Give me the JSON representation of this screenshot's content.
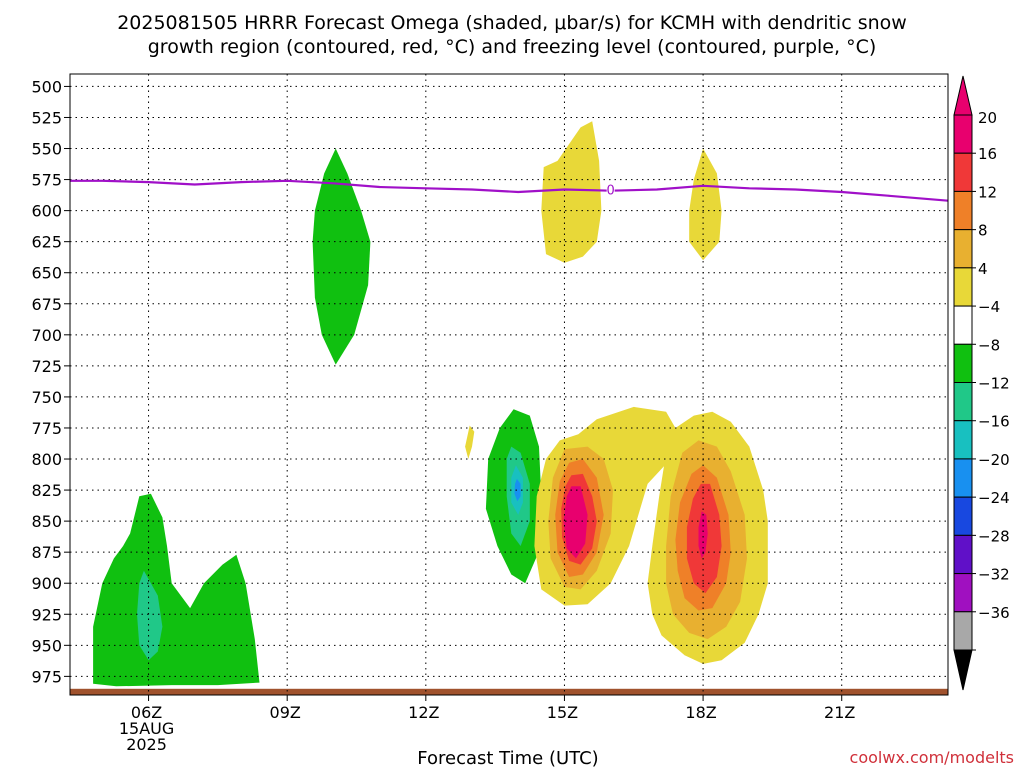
{
  "chart_data": {
    "type": "heatmap",
    "title_lines": [
      "2025081505 HRRR Forecast Omega (shaded, μbar/s) for KCMH with dendritic snow",
      "growth region (contoured, red, °C) and freezing level (contoured, purple, °C)"
    ],
    "xlabel": "Forecast Time (UTC)",
    "credit": "coolwx.com/modelts",
    "x_unit_note": "forecast hours since 2025081505",
    "xlim": [
      -0.7,
      18.3
    ],
    "ylim_mb": [
      490,
      990
    ],
    "y_ticks": [
      500,
      525,
      550,
      575,
      600,
      625,
      650,
      675,
      700,
      725,
      750,
      775,
      800,
      825,
      850,
      875,
      900,
      925,
      950,
      975
    ],
    "x_ticks": [
      {
        "x": 1,
        "lines": [
          "06Z",
          "15AUG",
          "2025"
        ]
      },
      {
        "x": 4,
        "lines": [
          "09Z"
        ]
      },
      {
        "x": 7,
        "lines": [
          "12Z"
        ]
      },
      {
        "x": 10,
        "lines": [
          "15Z"
        ]
      },
      {
        "x": 13,
        "lines": [
          "18Z"
        ]
      },
      {
        "x": 16,
        "lines": [
          "21Z"
        ]
      }
    ],
    "grid": true,
    "colorbar": {
      "labels": [
        "20",
        "16",
        "12",
        "8",
        "4",
        "−4",
        "−8",
        "−12",
        "−16",
        "−20",
        "−24",
        "−28",
        "−32",
        "−36"
      ],
      "colors": [
        "#e8006e",
        "#f03838",
        "#ef8028",
        "#e8b030",
        "#e8d838",
        "#ffffff",
        "#10c010",
        "#20c888",
        "#18c0c0",
        "#1890f0",
        "#1848e0",
        "#6010c8",
        "#a010c0",
        "#a8a8a8"
      ],
      "top_arrow_color": "#e8006e",
      "bottom_arrow_color": "#000000"
    },
    "freezing_level": {
      "label": "0",
      "color": "#a010c8",
      "x": [
        -0.7,
        0,
        1,
        2,
        3,
        4,
        5,
        6,
        7,
        8,
        9,
        10,
        11,
        12,
        13,
        14,
        15,
        16,
        17,
        18.3
      ],
      "p": [
        576,
        576,
        577,
        579,
        577,
        576,
        578,
        581,
        582,
        583,
        585,
        583,
        584,
        583,
        580,
        582,
        583,
        585,
        588,
        592
      ]
    },
    "ground": {
      "color": "#a0522d",
      "p_top": 985
    },
    "omega_regions": [
      {
        "value": -6,
        "color": "#10c010",
        "points": [
          [
            -0.2,
            981
          ],
          [
            0.3,
            983
          ],
          [
            1.5,
            982
          ],
          [
            2.5,
            982
          ],
          [
            3.4,
            980
          ],
          [
            3.3,
            945
          ],
          [
            3.1,
            900
          ],
          [
            2.9,
            877
          ],
          [
            2.6,
            885
          ],
          [
            2.2,
            900
          ],
          [
            1.9,
            920
          ],
          [
            1.5,
            900
          ],
          [
            1.4,
            870
          ],
          [
            1.3,
            847
          ],
          [
            1.05,
            828
          ],
          [
            0.8,
            830
          ],
          [
            0.6,
            860
          ],
          [
            0.45,
            870
          ],
          [
            0.25,
            880
          ],
          [
            0.0,
            900
          ],
          [
            -0.2,
            935
          ]
        ]
      },
      {
        "value": -10,
        "color": "#20c888",
        "points": [
          [
            0.9,
            890
          ],
          [
            1.2,
            910
          ],
          [
            1.3,
            935
          ],
          [
            1.2,
            955
          ],
          [
            1.0,
            962
          ],
          [
            0.8,
            950
          ],
          [
            0.75,
            925
          ],
          [
            0.8,
            900
          ]
        ]
      },
      {
        "value": -6,
        "color": "#10c010",
        "points": [
          [
            5.05,
            550
          ],
          [
            5.3,
            570
          ],
          [
            5.6,
            600
          ],
          [
            5.8,
            625
          ],
          [
            5.75,
            660
          ],
          [
            5.45,
            700
          ],
          [
            5.05,
            724
          ],
          [
            4.75,
            700
          ],
          [
            4.6,
            670
          ],
          [
            4.55,
            625
          ],
          [
            4.6,
            600
          ],
          [
            4.8,
            570
          ]
        ]
      },
      {
        "value": 6,
        "color": "#e8d838",
        "points": [
          [
            9.85,
            560
          ],
          [
            10.35,
            533
          ],
          [
            10.6,
            528
          ],
          [
            10.75,
            560
          ],
          [
            10.8,
            600
          ],
          [
            10.7,
            625
          ],
          [
            10.4,
            637
          ],
          [
            10.0,
            642
          ],
          [
            9.6,
            635
          ],
          [
            9.5,
            600
          ],
          [
            9.55,
            565
          ]
        ]
      },
      {
        "value": 6,
        "color": "#e8d838",
        "points": [
          [
            13.0,
            550
          ],
          [
            13.3,
            570
          ],
          [
            13.4,
            600
          ],
          [
            13.35,
            625
          ],
          [
            13.0,
            640
          ],
          [
            12.7,
            625
          ],
          [
            12.7,
            600
          ],
          [
            12.8,
            575
          ]
        ]
      },
      {
        "value": 6,
        "color": "#e8d838",
        "points": [
          [
            7.95,
            773
          ],
          [
            8.05,
            778
          ],
          [
            8.0,
            790
          ],
          [
            7.92,
            800
          ],
          [
            7.85,
            790
          ]
        ]
      },
      {
        "value": -6,
        "color": "#10c010",
        "points": [
          [
            8.9,
            760
          ],
          [
            9.25,
            765
          ],
          [
            9.45,
            790
          ],
          [
            9.5,
            830
          ],
          [
            9.5,
            870
          ],
          [
            9.15,
            900
          ],
          [
            8.85,
            893
          ],
          [
            8.55,
            870
          ],
          [
            8.3,
            840
          ],
          [
            8.35,
            800
          ],
          [
            8.6,
            775
          ]
        ]
      },
      {
        "value": -10,
        "color": "#20c888",
        "points": [
          [
            8.85,
            790
          ],
          [
            9.05,
            795
          ],
          [
            9.25,
            820
          ],
          [
            9.25,
            850
          ],
          [
            9.05,
            870
          ],
          [
            8.85,
            860
          ],
          [
            8.75,
            830
          ],
          [
            8.75,
            800
          ]
        ]
      },
      {
        "value": -14,
        "color": "#18c0c0",
        "points": [
          [
            8.95,
            805
          ],
          [
            9.1,
            815
          ],
          [
            9.1,
            835
          ],
          [
            9.0,
            845
          ],
          [
            8.85,
            835
          ],
          [
            8.85,
            815
          ]
        ]
      },
      {
        "value": -18,
        "color": "#1890f0",
        "points": [
          [
            8.97,
            816
          ],
          [
            9.05,
            820
          ],
          [
            9.05,
            830
          ],
          [
            8.98,
            834
          ],
          [
            8.92,
            828
          ],
          [
            8.93,
            820
          ]
        ]
      },
      {
        "value": 6,
        "color": "#e8d838",
        "points": [
          [
            10.3,
            780
          ],
          [
            10.7,
            768
          ],
          [
            11.5,
            758
          ],
          [
            12.2,
            762
          ],
          [
            12.4,
            775
          ],
          [
            12.3,
            800
          ],
          [
            11.8,
            820
          ],
          [
            11.4,
            870
          ],
          [
            11.0,
            900
          ],
          [
            10.5,
            917
          ],
          [
            10.0,
            918
          ],
          [
            9.5,
            905
          ],
          [
            9.35,
            870
          ],
          [
            9.4,
            830
          ],
          [
            9.6,
            800
          ],
          [
            9.9,
            785
          ]
        ]
      },
      {
        "value": 10,
        "color": "#e8b030",
        "points": [
          [
            10.0,
            792
          ],
          [
            10.5,
            790
          ],
          [
            10.85,
            800
          ],
          [
            11.05,
            825
          ],
          [
            11.0,
            860
          ],
          [
            10.7,
            890
          ],
          [
            10.35,
            905
          ],
          [
            10.0,
            903
          ],
          [
            9.7,
            880
          ],
          [
            9.65,
            850
          ],
          [
            9.75,
            815
          ]
        ]
      },
      {
        "value": 14,
        "color": "#ef8028",
        "points": [
          [
            10.1,
            803
          ],
          [
            10.4,
            800
          ],
          [
            10.7,
            815
          ],
          [
            10.85,
            845
          ],
          [
            10.7,
            875
          ],
          [
            10.4,
            893
          ],
          [
            10.1,
            895
          ],
          [
            9.85,
            875
          ],
          [
            9.8,
            845
          ],
          [
            9.9,
            818
          ]
        ]
      },
      {
        "value": 18,
        "color": "#f03838",
        "points": [
          [
            10.15,
            813
          ],
          [
            10.4,
            812
          ],
          [
            10.6,
            830
          ],
          [
            10.7,
            850
          ],
          [
            10.6,
            872
          ],
          [
            10.35,
            885
          ],
          [
            10.1,
            882
          ],
          [
            9.95,
            863
          ],
          [
            9.93,
            840
          ],
          [
            10.02,
            822
          ]
        ]
      },
      {
        "value": 22,
        "color": "#e8006e",
        "points": [
          [
            10.15,
            822
          ],
          [
            10.35,
            822
          ],
          [
            10.5,
            845
          ],
          [
            10.45,
            868
          ],
          [
            10.25,
            880
          ],
          [
            10.05,
            872
          ],
          [
            9.98,
            850
          ],
          [
            10.05,
            830
          ]
        ]
      },
      {
        "value": 6,
        "color": "#e8d838",
        "points": [
          [
            12.4,
            775
          ],
          [
            12.8,
            765
          ],
          [
            13.2,
            762
          ],
          [
            13.6,
            770
          ],
          [
            14.0,
            790
          ],
          [
            14.3,
            825
          ],
          [
            14.4,
            850
          ],
          [
            14.4,
            870
          ],
          [
            14.4,
            900
          ],
          [
            14.2,
            925
          ],
          [
            13.9,
            948
          ],
          [
            13.4,
            962
          ],
          [
            13.0,
            965
          ],
          [
            12.6,
            958
          ],
          [
            12.1,
            942
          ],
          [
            11.9,
            925
          ],
          [
            11.8,
            900
          ],
          [
            11.9,
            870
          ],
          [
            12.05,
            830
          ],
          [
            12.2,
            795
          ]
        ]
      },
      {
        "value": 10,
        "color": "#e8b030",
        "points": [
          [
            12.55,
            795
          ],
          [
            12.9,
            785
          ],
          [
            13.3,
            790
          ],
          [
            13.6,
            810
          ],
          [
            13.9,
            845
          ],
          [
            13.95,
            880
          ],
          [
            13.8,
            915
          ],
          [
            13.5,
            935
          ],
          [
            13.1,
            945
          ],
          [
            12.7,
            940
          ],
          [
            12.35,
            925
          ],
          [
            12.2,
            900
          ],
          [
            12.2,
            870
          ],
          [
            12.3,
            830
          ]
        ]
      },
      {
        "value": 14,
        "color": "#ef8028",
        "points": [
          [
            12.75,
            812
          ],
          [
            13.0,
            805
          ],
          [
            13.3,
            815
          ],
          [
            13.55,
            845
          ],
          [
            13.6,
            875
          ],
          [
            13.5,
            900
          ],
          [
            13.2,
            920
          ],
          [
            12.9,
            922
          ],
          [
            12.6,
            912
          ],
          [
            12.45,
            890
          ],
          [
            12.4,
            865
          ],
          [
            12.5,
            835
          ]
        ]
      },
      {
        "value": 18,
        "color": "#f03838",
        "points": [
          [
            12.95,
            820
          ],
          [
            13.15,
            820
          ],
          [
            13.35,
            845
          ],
          [
            13.4,
            870
          ],
          [
            13.3,
            895
          ],
          [
            13.05,
            908
          ],
          [
            12.8,
            900
          ],
          [
            12.65,
            880
          ],
          [
            12.65,
            855
          ],
          [
            12.78,
            832
          ]
        ]
      },
      {
        "value": 22,
        "color": "#e8006e",
        "points": [
          [
            12.97,
            842
          ],
          [
            13.07,
            845
          ],
          [
            13.1,
            860
          ],
          [
            13.05,
            875
          ],
          [
            12.97,
            880
          ],
          [
            12.9,
            870
          ],
          [
            12.9,
            855
          ]
        ]
      }
    ]
  }
}
